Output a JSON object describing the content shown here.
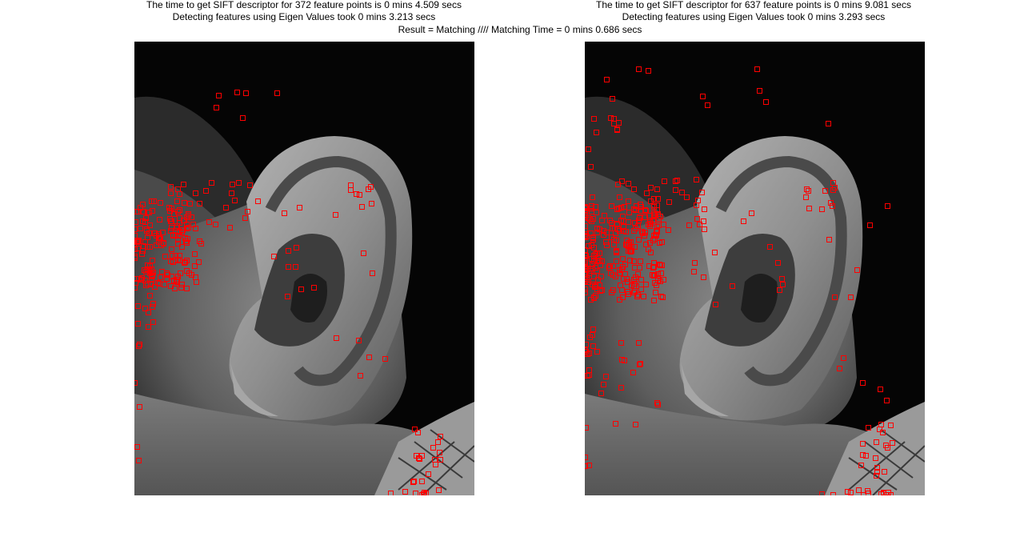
{
  "left_panel": {
    "caption_line1": "The time to get SIFT descriptor for 372 feature points is 0 mins 4.509 secs",
    "caption_line2": "Detecting features using Eigen Values took 0 mins 3.213 secs"
  },
  "right_panel": {
    "caption_line1": "The time to get SIFT descriptor for 637 feature points is 0 mins 9.081 secs",
    "caption_line2": "Detecting features using Eigen Values took 0 mins 3.293 secs"
  },
  "result_line": "Result =  Matching //// Matching Time = 0 mins 0.686 secs",
  "colors": {
    "marker": "#ff0000",
    "background": "#000000"
  }
}
